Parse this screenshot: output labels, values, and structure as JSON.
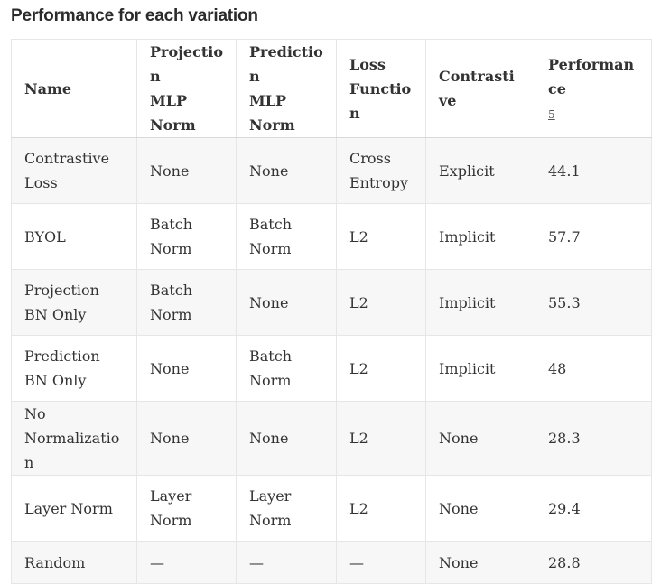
{
  "title": "Performance for each variation",
  "table": {
    "headers": {
      "name": "Name",
      "projection_line1": "Projection",
      "projection_line2": "MLP",
      "projection_line3": "Norm",
      "prediction_line1": "Prediction",
      "prediction_line2": "MLP",
      "prediction_line3": "Norm",
      "loss_line1": "Loss",
      "loss_line2": "Function",
      "contrastive": "Contrastive",
      "performance": "Performance",
      "performance_footnote": "5"
    },
    "rows": [
      {
        "name": "Contrastive Loss",
        "projection": "None",
        "prediction": "None",
        "loss": "Cross Entropy",
        "contrastive": "Explicit",
        "performance": "44.1"
      },
      {
        "name": "BYOL",
        "projection": "Batch Norm",
        "prediction": "Batch Norm",
        "loss": "L2",
        "contrastive": "Implicit",
        "performance": "57.7"
      },
      {
        "name": "Projection BN Only",
        "projection": "Batch Norm",
        "prediction": "None",
        "loss": "L2",
        "contrastive": "Implicit",
        "performance": "55.3"
      },
      {
        "name": "Prediction BN Only",
        "projection": "None",
        "prediction": "Batch Norm",
        "loss": "L2",
        "contrastive": "Implicit",
        "performance": "48"
      },
      {
        "name": "No Normalization",
        "projection": "None",
        "prediction": "None",
        "loss": "L2",
        "contrastive": "None",
        "performance": "28.3"
      },
      {
        "name": "Layer Norm",
        "projection": "Layer Norm",
        "prediction": "Layer Norm",
        "loss": "L2",
        "contrastive": "None",
        "performance": "29.4"
      },
      {
        "name": "Random",
        "projection": "—",
        "prediction": "—",
        "loss": "—",
        "contrastive": "None",
        "performance": "28.8"
      }
    ]
  }
}
